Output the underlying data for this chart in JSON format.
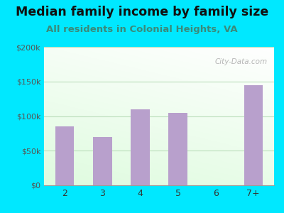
{
  "title": "Median family income by family size",
  "subtitle": "All residents in Colonial Heights, VA",
  "categories": [
    "2",
    "3",
    "4",
    "5",
    "6",
    "7+"
  ],
  "values": [
    85000,
    70000,
    110000,
    105000,
    0,
    145000
  ],
  "bar_color": "#b8a0cc",
  "title_fontsize": 12.5,
  "subtitle_fontsize": 9.5,
  "ylim": [
    0,
    200000
  ],
  "yticks": [
    0,
    50000,
    100000,
    150000,
    200000
  ],
  "ytick_labels": [
    "$0",
    "$50k",
    "$100k",
    "$150k",
    "$200k"
  ],
  "bg_outer": "#00e8ff",
  "watermark": "City-Data.com",
  "grid_color": "#bbddbb",
  "tick_color": "#555555",
  "subtitle_color": "#3a8a7a",
  "title_color": "#111111"
}
